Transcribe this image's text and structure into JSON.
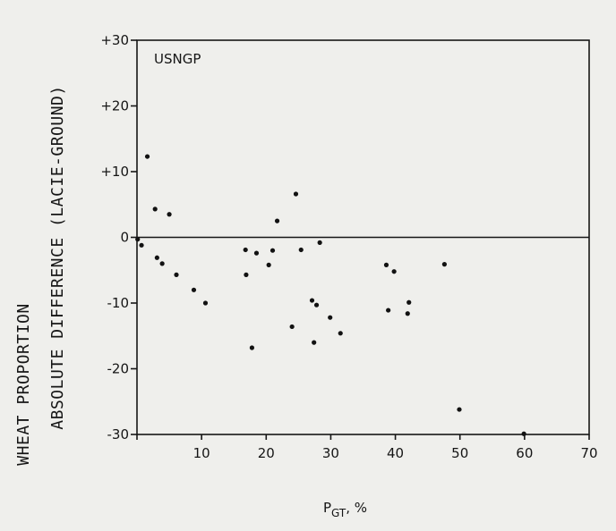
{
  "chart_data": {
    "type": "scatter",
    "title": "",
    "annotation": "USNGP",
    "xlabel_main": "P",
    "xlabel_sub": "GT",
    "xlabel_suffix": ", %",
    "ylabel_line1": "WHEAT PROPORTION",
    "ylabel_line2": "ABSOLUTE DIFFERENCE (LACIE-GROUND)",
    "xlim": [
      0,
      70
    ],
    "ylim": [
      -30,
      30
    ],
    "x_ticks": [
      0,
      10,
      20,
      30,
      40,
      50,
      60,
      70
    ],
    "x_tick_labels": [
      "",
      "10",
      "20",
      "30",
      "40",
      "50",
      "60",
      "70"
    ],
    "y_ticks": [
      30,
      20,
      10,
      0,
      -10,
      -20,
      -30
    ],
    "y_tick_labels": [
      "+30",
      "+20",
      "+10",
      "0",
      "-10",
      "-20",
      "-30"
    ],
    "grid": false,
    "zero_line": true,
    "series": [
      {
        "points": [
          {
            "x": 0.1,
            "y": -0.3
          },
          {
            "x": 0.7,
            "y": -1.2
          },
          {
            "x": 1.6,
            "y": 12.3
          },
          {
            "x": 2.8,
            "y": 4.3
          },
          {
            "x": 3.1,
            "y": -3.1
          },
          {
            "x": 3.9,
            "y": -4.0
          },
          {
            "x": 5.0,
            "y": 3.5
          },
          {
            "x": 6.1,
            "y": -5.7
          },
          {
            "x": 8.8,
            "y": -8.0
          },
          {
            "x": 10.6,
            "y": -10.0
          },
          {
            "x": 16.8,
            "y": -1.9
          },
          {
            "x": 16.9,
            "y": -5.7
          },
          {
            "x": 17.8,
            "y": -16.8
          },
          {
            "x": 18.5,
            "y": -2.4
          },
          {
            "x": 20.4,
            "y": -4.2
          },
          {
            "x": 21.0,
            "y": -2.0
          },
          {
            "x": 21.7,
            "y": 2.5
          },
          {
            "x": 24.0,
            "y": -13.6
          },
          {
            "x": 24.6,
            "y": 6.6
          },
          {
            "x": 25.4,
            "y": -1.9
          },
          {
            "x": 27.1,
            "y": -9.6
          },
          {
            "x": 27.4,
            "y": -16.0
          },
          {
            "x": 27.8,
            "y": -10.3
          },
          {
            "x": 28.3,
            "y": -0.8
          },
          {
            "x": 29.9,
            "y": -12.2
          },
          {
            "x": 31.5,
            "y": -14.6
          },
          {
            "x": 38.6,
            "y": -4.2
          },
          {
            "x": 38.9,
            "y": -11.1
          },
          {
            "x": 39.8,
            "y": -5.2
          },
          {
            "x": 41.9,
            "y": -11.6
          },
          {
            "x": 42.1,
            "y": -9.9
          },
          {
            "x": 47.6,
            "y": -4.1
          },
          {
            "x": 49.9,
            "y": -26.2
          },
          {
            "x": 59.9,
            "y": -29.9
          }
        ]
      }
    ]
  }
}
